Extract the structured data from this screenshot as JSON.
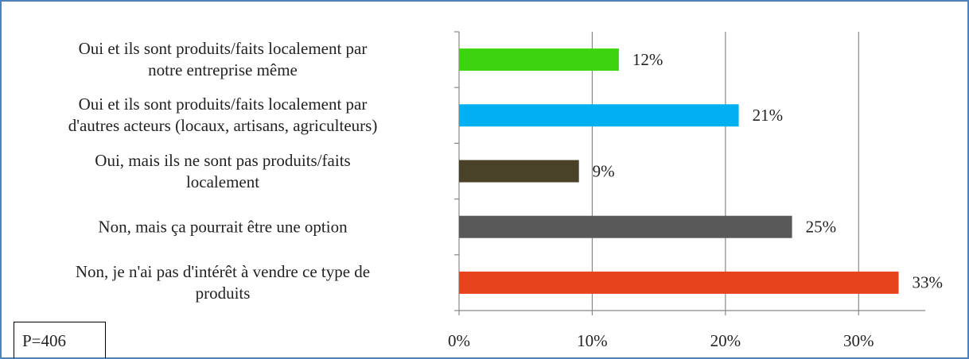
{
  "chart_data": {
    "type": "bar",
    "orientation": "horizontal",
    "categories": [
      "Oui et ils sont produits/faits localement par\nnotre entreprise même",
      "Oui et ils sont produits/faits localement par\nd'autres acteurs (locaux, artisans, agriculteurs)",
      "Oui, mais ils ne sont pas produits/faits\nlocalement",
      "Non, mais ça pourrait être une option",
      "Non, je n'ai pas d'intérêt à vendre ce type de\nproduits"
    ],
    "values": [
      12,
      21,
      9,
      25,
      33
    ],
    "value_labels": [
      "12%",
      "21%",
      "9%",
      "25%",
      "33%"
    ],
    "colors": [
      "#3dd40f",
      "#00b0f0",
      "#4a4129",
      "#595959",
      "#e8441c"
    ],
    "xlim": [
      0,
      35
    ],
    "xticks": [
      {
        "value": 0,
        "label": "0%"
      },
      {
        "value": 10,
        "label": "10%"
      },
      {
        "value": 20,
        "label": "20%"
      },
      {
        "value": 30,
        "label": "30%"
      }
    ],
    "grid": true,
    "annotation": "P=406"
  }
}
